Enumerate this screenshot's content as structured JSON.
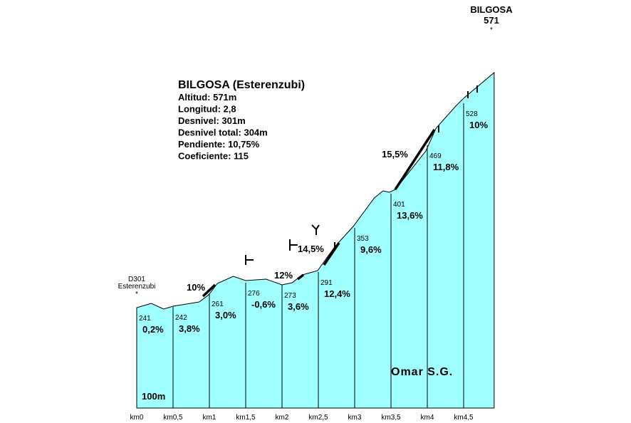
{
  "chart_data": {
    "type": "profile",
    "title": "BILGOSA (Esterenzubi)",
    "stats": [
      "Altitud: 571m",
      "Longitud: 2,8",
      "Desnivel: 301m",
      "Desnivel total: 304m",
      "Pendiente: 10,75%",
      "Coeficiente: 115"
    ],
    "summit": {
      "name": "BILGOSA",
      "altitude": 571,
      "mark": "*"
    },
    "start": {
      "road": "D301",
      "name": "Esterenzubi",
      "mark": "*"
    },
    "scale_label": "100m",
    "credit": "Omar S.G.",
    "xlim": [
      0,
      5
    ],
    "ylim": [
      100,
      580
    ],
    "xticks": [
      {
        "value": 0,
        "label": "km0"
      },
      {
        "value": 0.5,
        "label": "km0,5"
      },
      {
        "value": 1,
        "label": "km1"
      },
      {
        "value": 1.5,
        "label": "km1,5"
      },
      {
        "value": 2,
        "label": "km2"
      },
      {
        "value": 2.5,
        "label": "km2,5"
      },
      {
        "value": 3,
        "label": "km3"
      },
      {
        "value": 3.5,
        "label": "km3,5"
      },
      {
        "value": 4,
        "label": "km4"
      },
      {
        "value": 4.5,
        "label": "km4,5"
      }
    ],
    "segments": {
      "altitudes": [
        241,
        242,
        261,
        276,
        273,
        291,
        353,
        401,
        469,
        528
      ],
      "gradients": [
        "0,2%",
        "3,8%",
        "3,0%",
        "-0,6%",
        "3,6%",
        "12,4%",
        "9,6%",
        "13,6%",
        "11,8%",
        "10%"
      ]
    },
    "steep_labels": [
      "10%",
      "12%",
      "14,5%",
      "15,5%"
    ],
    "profile": {
      "km": [
        0,
        0.2,
        0.37,
        0.5,
        0.86,
        0.99,
        1.11,
        1.33,
        1.5,
        1.78,
        2.0,
        2.14,
        2.28,
        2.49,
        2.73,
        2.98,
        3.27,
        3.39,
        3.48,
        3.56,
        3.98,
        4.12,
        4.4,
        4.5,
        4.92
      ],
      "alt": [
        241,
        247,
        239,
        243,
        249,
        259,
        275,
        285,
        279,
        281,
        273,
        276,
        287,
        293,
        327,
        355,
        395,
        405,
        403,
        407,
        461,
        493,
        525,
        535,
        571
      ]
    },
    "fill": "#a0ffff"
  }
}
